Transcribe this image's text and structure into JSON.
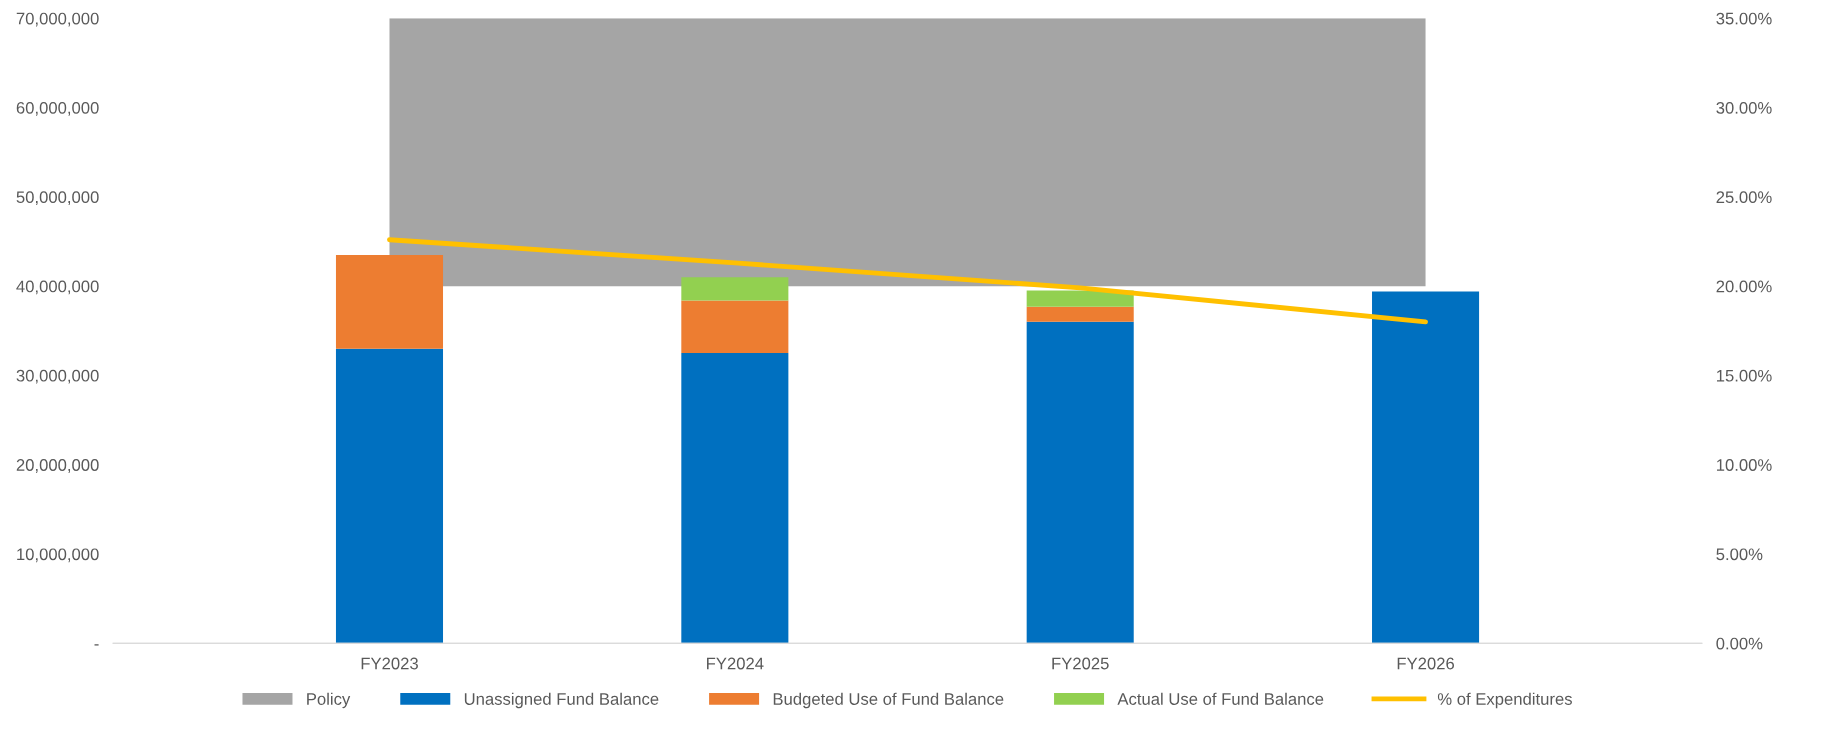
{
  "chart_data": {
    "type": "bar",
    "stacked": true,
    "categories": [
      "FY2023",
      "FY2024",
      "FY2025",
      "FY2026"
    ],
    "series": [
      {
        "name": "Unassigned Fund Balance",
        "color": "#0070c0",
        "values": [
          33000000,
          32500000,
          36000000,
          39400000
        ]
      },
      {
        "name": "Budgeted Use of Fund Balance",
        "color": "#ed7d31",
        "values": [
          10500000,
          5900000,
          1700000,
          null
        ]
      },
      {
        "name": "Actual Use of Fund Balance",
        "color": "#92d050",
        "values": [
          null,
          2600000,
          1800000,
          null
        ]
      },
      {
        "name": "% of Expenditures",
        "type": "line",
        "axis": "y2",
        "color": "#ffc000",
        "values": [
          22.6,
          21.3,
          19.9,
          18.0
        ]
      }
    ],
    "ylim": [
      0,
      70000000
    ],
    "yticks": [
      {
        "value": 0,
        "label": "-"
      },
      {
        "value": 10000000,
        "label": "10,000,000"
      },
      {
        "value": 20000000,
        "label": "20,000,000"
      },
      {
        "value": 30000000,
        "label": "30,000,000"
      },
      {
        "value": 40000000,
        "label": "40,000,000"
      },
      {
        "value": 50000000,
        "label": "50,000,000"
      },
      {
        "value": 60000000,
        "label": "60,000,000"
      },
      {
        "value": 70000000,
        "label": "70,000,000"
      }
    ],
    "y2lim": [
      0,
      35
    ],
    "y2ticks": [
      {
        "value": 0,
        "label": "0.00%"
      },
      {
        "value": 5,
        "label": "5.00%"
      },
      {
        "value": 10,
        "label": "10.00%"
      },
      {
        "value": 15,
        "label": "15.00%"
      },
      {
        "value": 20,
        "label": "20.00%"
      },
      {
        "value": 25,
        "label": "25.00%"
      },
      {
        "value": 30,
        "label": "30.00%"
      },
      {
        "value": 35,
        "label": "35.00%"
      }
    ],
    "bands": [
      {
        "axis": "y",
        "from": 40000000,
        "to": 70000000,
        "label": "Policy",
        "color": "#a5a5a5"
      }
    ],
    "grid": false,
    "legend": "bottom",
    "marker": "none",
    "line_style": "solid"
  }
}
